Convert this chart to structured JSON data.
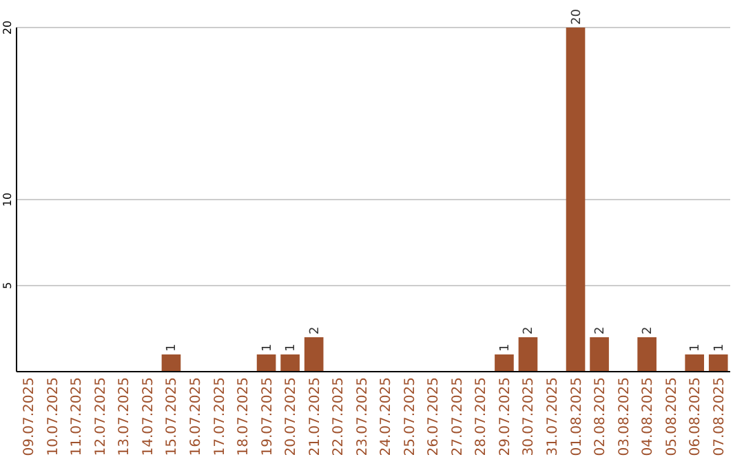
{
  "chart_data": {
    "type": "bar",
    "categories": [
      "09.07.2025",
      "10.07.2025",
      "11.07.2025",
      "12.07.2025",
      "13.07.2025",
      "14.07.2025",
      "15.07.2025",
      "16.07.2025",
      "17.07.2025",
      "18.07.2025",
      "19.07.2025",
      "20.07.2025",
      "21.07.2025",
      "22.07.2025",
      "23.07.2025",
      "24.07.2025",
      "25.07.2025",
      "26.07.2025",
      "27.07.2025",
      "28.07.2025",
      "29.07.2025",
      "30.07.2025",
      "31.07.2025",
      "01.08.2025",
      "02.08.2025",
      "03.08.2025",
      "04.08.2025",
      "05.08.2025",
      "06.08.2025",
      "07.08.2025"
    ],
    "values": [
      0,
      0,
      0,
      0,
      0,
      0,
      1,
      0,
      0,
      0,
      1,
      1,
      2,
      0,
      0,
      0,
      0,
      0,
      0,
      0,
      1,
      2,
      0,
      20,
      2,
      0,
      2,
      0,
      1,
      1
    ],
    "color": "#a0522d",
    "value_labels": [
      null,
      null,
      null,
      null,
      null,
      null,
      "1",
      null,
      null,
      null,
      "1",
      "1",
      "2",
      null,
      null,
      null,
      null,
      null,
      null,
      null,
      "1",
      "2",
      null,
      "20",
      "2",
      null,
      "2",
      null,
      "1",
      "1"
    ],
    "ylim": [
      0,
      20
    ],
    "yticks": [
      5,
      10,
      20
    ],
    "grid": "y"
  }
}
